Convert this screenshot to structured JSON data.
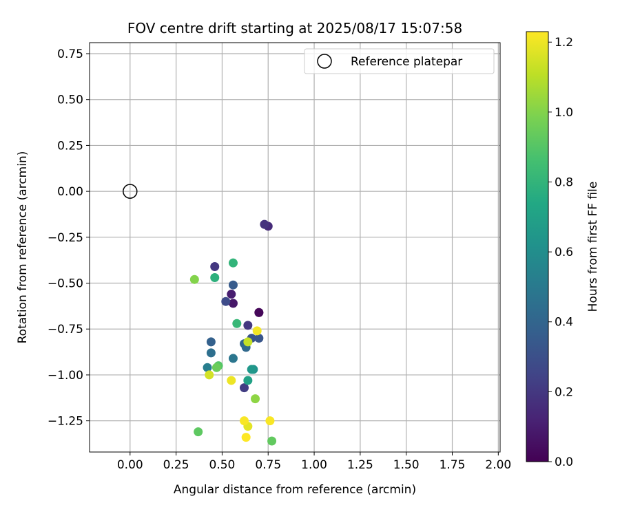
{
  "chart_data": {
    "type": "scatter",
    "title": "FOV centre drift starting at 2025/08/17 15:07:58",
    "xlabel": "Angular distance from reference (arcmin)",
    "ylabel": "Rotation from reference (arcmin)",
    "xlim": [
      -0.22,
      2.01
    ],
    "ylim": [
      -1.42,
      0.81
    ],
    "xticks": [
      0.0,
      0.25,
      0.5,
      0.75,
      1.0,
      1.25,
      1.5,
      1.75,
      2.0
    ],
    "xtick_labels": [
      "0.00",
      "0.25",
      "0.50",
      "0.75",
      "1.00",
      "1.25",
      "1.50",
      "1.75",
      "2.00"
    ],
    "yticks": [
      0.75,
      0.5,
      0.25,
      0.0,
      -0.25,
      -0.5,
      -0.75,
      -1.0,
      -1.25
    ],
    "ytick_labels": [
      "0.75",
      "0.50",
      "0.25",
      "0.00",
      "−0.25",
      "−0.50",
      "−0.75",
      "−1.00",
      "−1.25"
    ],
    "grid": true,
    "legend": {
      "placement": "top-right",
      "entries": [
        {
          "label": "Reference platepar",
          "marker": "open-circle"
        }
      ]
    },
    "reference_point": {
      "x": 0.0,
      "y": 0.0
    },
    "colorbar": {
      "label": "Hours from first FF file",
      "range": [
        0.0,
        1.23
      ],
      "ticks": [
        0.0,
        0.2,
        0.4,
        0.6,
        0.8,
        1.0,
        1.2
      ],
      "tick_labels": [
        "0.0",
        "0.2",
        "0.4",
        "0.6",
        "0.8",
        "1.0",
        "1.2"
      ],
      "colormap": "viridis"
    },
    "points": [
      {
        "x": 0.7,
        "y": -0.66,
        "hours": 0.0
      },
      {
        "x": 0.7,
        "y": -0.66,
        "hours": 0.02
      },
      {
        "x": 0.56,
        "y": -0.61,
        "hours": 0.08
      },
      {
        "x": 0.55,
        "y": -0.56,
        "hours": 0.1
      },
      {
        "x": 0.75,
        "y": -0.19,
        "hours": 0.15
      },
      {
        "x": 0.73,
        "y": -0.18,
        "hours": 0.18
      },
      {
        "x": 0.64,
        "y": -0.73,
        "hours": 0.2
      },
      {
        "x": 0.46,
        "y": -0.41,
        "hours": 0.2
      },
      {
        "x": 0.62,
        "y": -1.07,
        "hours": 0.22
      },
      {
        "x": 0.52,
        "y": -0.6,
        "hours": 0.28
      },
      {
        "x": 0.66,
        "y": -0.8,
        "hours": 0.32
      },
      {
        "x": 0.7,
        "y": -0.8,
        "hours": 0.33
      },
      {
        "x": 0.56,
        "y": -0.51,
        "hours": 0.35
      },
      {
        "x": 0.44,
        "y": -0.82,
        "hours": 0.38
      },
      {
        "x": 0.62,
        "y": -0.83,
        "hours": 0.4
      },
      {
        "x": 0.63,
        "y": -0.85,
        "hours": 0.42
      },
      {
        "x": 0.44,
        "y": -0.88,
        "hours": 0.45
      },
      {
        "x": 0.56,
        "y": -0.91,
        "hours": 0.48
      },
      {
        "x": 0.42,
        "y": -0.96,
        "hours": 0.52
      },
      {
        "x": 0.67,
        "y": -0.97,
        "hours": 0.62
      },
      {
        "x": 0.66,
        "y": -0.97,
        "hours": 0.65
      },
      {
        "x": 0.64,
        "y": -1.03,
        "hours": 0.7
      },
      {
        "x": 0.46,
        "y": -0.47,
        "hours": 0.78
      },
      {
        "x": 0.56,
        "y": -0.39,
        "hours": 0.8
      },
      {
        "x": 0.58,
        "y": -0.72,
        "hours": 0.82
      },
      {
        "x": 0.48,
        "y": -0.95,
        "hours": 0.9
      },
      {
        "x": 0.47,
        "y": -0.96,
        "hours": 0.95
      },
      {
        "x": 0.37,
        "y": -1.31,
        "hours": 0.92
      },
      {
        "x": 0.77,
        "y": -1.36,
        "hours": 0.93
      },
      {
        "x": 0.35,
        "y": -0.48,
        "hours": 1.0
      },
      {
        "x": 0.68,
        "y": -1.13,
        "hours": 1.02
      },
      {
        "x": 0.64,
        "y": -0.82,
        "hours": 1.12
      },
      {
        "x": 0.43,
        "y": -1.0,
        "hours": 1.15
      },
      {
        "x": 0.64,
        "y": -1.28,
        "hours": 1.18
      },
      {
        "x": 0.55,
        "y": -1.03,
        "hours": 1.2
      },
      {
        "x": 0.69,
        "y": -0.76,
        "hours": 1.21
      },
      {
        "x": 0.62,
        "y": -1.25,
        "hours": 1.22
      },
      {
        "x": 0.76,
        "y": -1.25,
        "hours": 1.22
      },
      {
        "x": 0.63,
        "y": -1.34,
        "hours": 1.23
      }
    ]
  }
}
